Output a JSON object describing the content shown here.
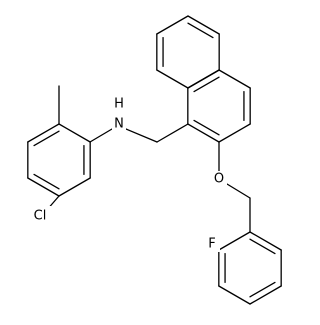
{
  "atoms": [
    {
      "label": "Cl"
    },
    {
      "label": "H"
    },
    {
      "label": "N"
    },
    {
      "label": "O"
    },
    {
      "label": "F"
    }
  ]
}
